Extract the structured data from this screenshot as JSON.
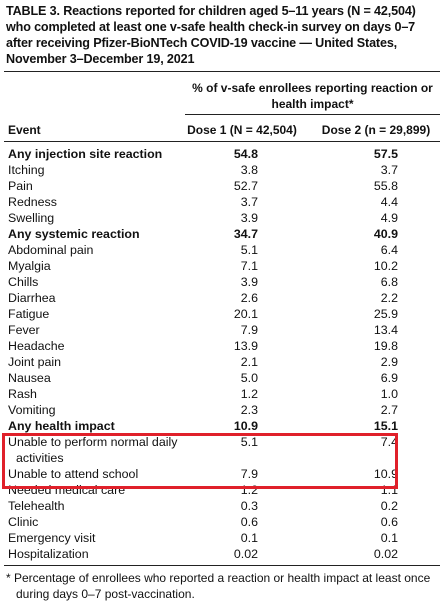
{
  "table": {
    "title": "TABLE 3. Reactions reported for children aged 5–11 years (N = 42,504) who completed at least one v-safe health check-in survey on days 0–7 after receiving Pfizer-BioNTech COVID-19 vaccine — United States, November 3–December 19, 2021",
    "group_header": "% of v-safe enrollees reporting reaction or health impact*",
    "columns": [
      "Event",
      "Dose 1 (N = 42,504)",
      "Dose 2 (n = 29,899)"
    ],
    "rows": [
      {
        "event": "Any injection site reaction",
        "dose1": "54.8",
        "dose2": "57.5",
        "bold": true
      },
      {
        "event": "Itching",
        "dose1": "3.8",
        "dose2": "3.7",
        "bold": false
      },
      {
        "event": "Pain",
        "dose1": "52.7",
        "dose2": "55.8",
        "bold": false
      },
      {
        "event": "Redness",
        "dose1": "3.7",
        "dose2": "4.4",
        "bold": false
      },
      {
        "event": "Swelling",
        "dose1": "3.9",
        "dose2": "4.9",
        "bold": false
      },
      {
        "event": "Any systemic reaction",
        "dose1": "34.7",
        "dose2": "40.9",
        "bold": true
      },
      {
        "event": "Abdominal pain",
        "dose1": "5.1",
        "dose2": "6.4",
        "bold": false
      },
      {
        "event": "Myalgia",
        "dose1": "7.1",
        "dose2": "10.2",
        "bold": false
      },
      {
        "event": "Chills",
        "dose1": "3.9",
        "dose2": "6.8",
        "bold": false
      },
      {
        "event": "Diarrhea",
        "dose1": "2.6",
        "dose2": "2.2",
        "bold": false
      },
      {
        "event": "Fatigue",
        "dose1": "20.1",
        "dose2": "25.9",
        "bold": false
      },
      {
        "event": "Fever",
        "dose1": "7.9",
        "dose2": "13.4",
        "bold": false
      },
      {
        "event": "Headache",
        "dose1": "13.9",
        "dose2": "19.8",
        "bold": false
      },
      {
        "event": "Joint pain",
        "dose1": "2.1",
        "dose2": "2.9",
        "bold": false
      },
      {
        "event": "Nausea",
        "dose1": "5.0",
        "dose2": "6.9",
        "bold": false
      },
      {
        "event": "Rash",
        "dose1": "1.2",
        "dose2": "1.0",
        "bold": false
      },
      {
        "event": "Vomiting",
        "dose1": "2.3",
        "dose2": "2.7",
        "bold": false
      },
      {
        "event": "Any health impact",
        "dose1": "10.9",
        "dose2": "15.1",
        "bold": true
      },
      {
        "event": "Unable to perform normal daily activities",
        "dose1": "5.1",
        "dose2": "7.4",
        "bold": false
      },
      {
        "event": "Unable to attend school",
        "dose1": "7.9",
        "dose2": "10.9",
        "bold": false
      },
      {
        "event": "Needed medical care",
        "dose1": "1.2",
        "dose2": "1.1",
        "bold": false
      },
      {
        "event": "Telehealth",
        "dose1": "0.3",
        "dose2": "0.2",
        "bold": false
      },
      {
        "event": "Clinic",
        "dose1": "0.6",
        "dose2": "0.6",
        "bold": false
      },
      {
        "event": "Emergency visit",
        "dose1": "0.1",
        "dose2": "0.1",
        "bold": false
      },
      {
        "event": "Hospitalization",
        "dose1": "0.02",
        "dose2": "0.02",
        "bold": false
      }
    ],
    "footnote": "* Percentage of enrollees who reported a reaction or health impact at least once during days 0–7 post-vaccination."
  }
}
